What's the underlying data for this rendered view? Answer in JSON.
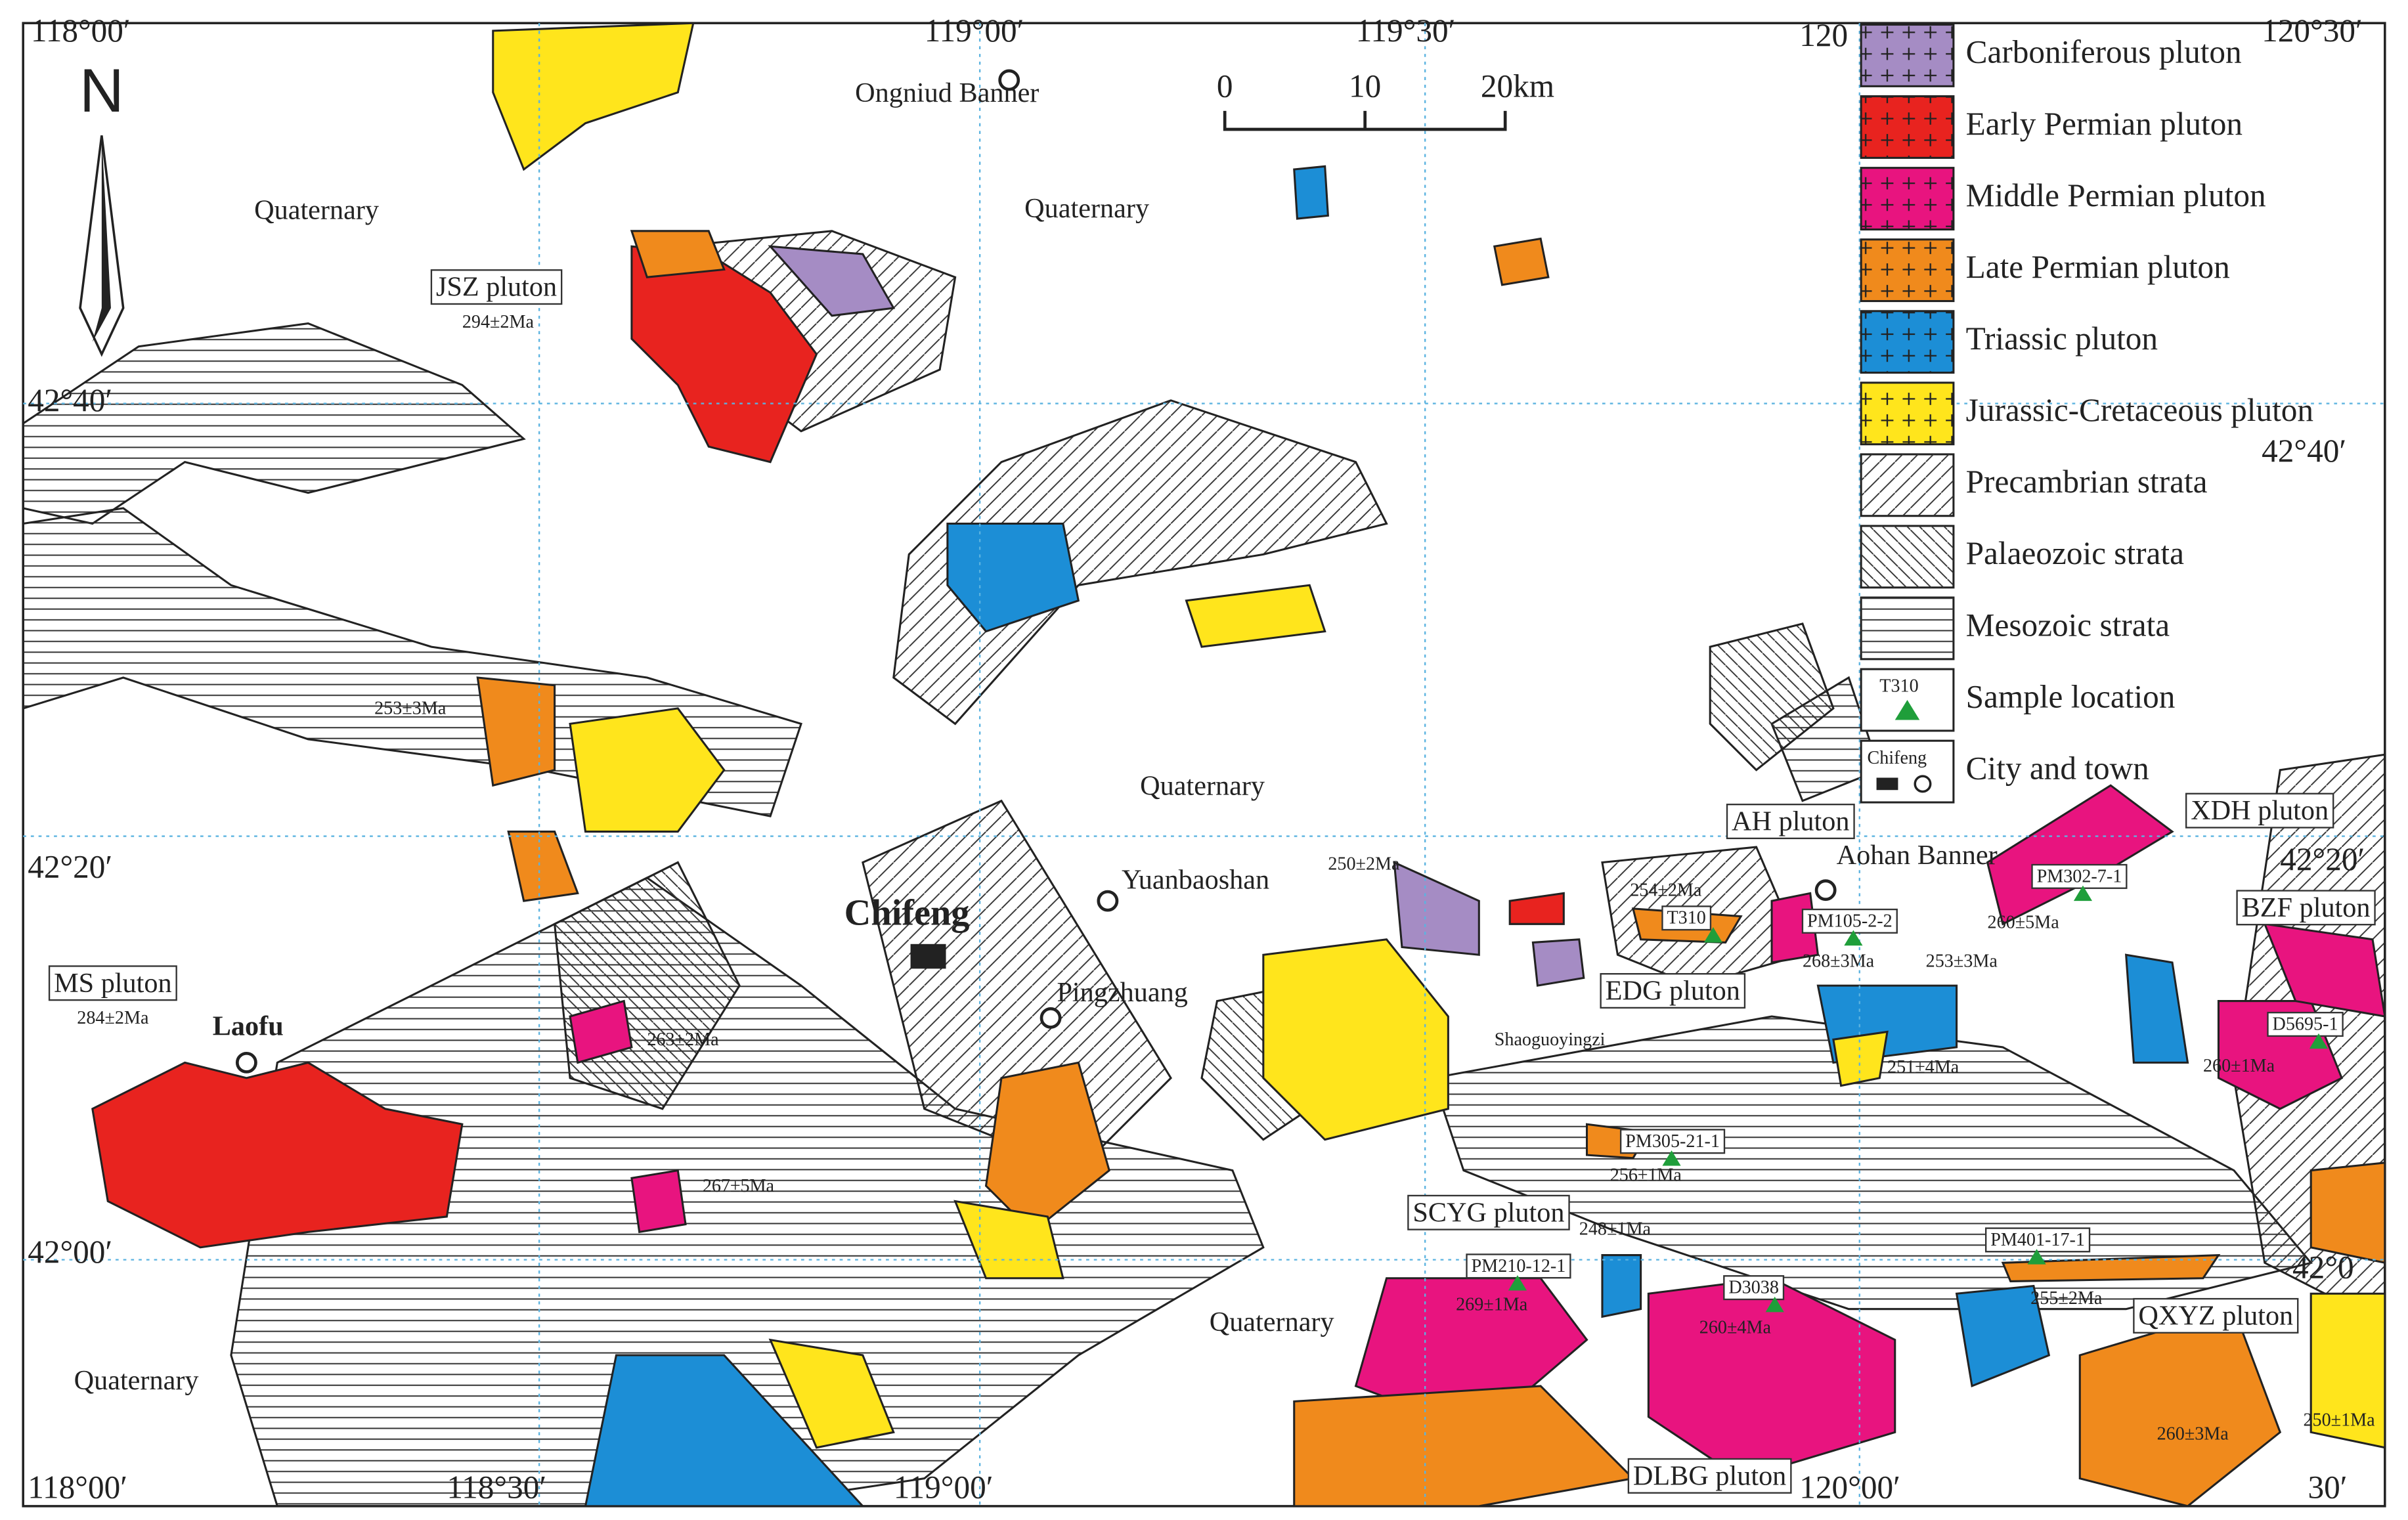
{
  "coordinates": {
    "top": [
      "118°00′",
      "119°00′",
      "119°30′",
      "120",
      "120°30′"
    ],
    "left": [
      "42°40′",
      "42°20′",
      "42°00′"
    ],
    "right": [
      "42°40′",
      "42°20′",
      "42°0"
    ],
    "bottom": [
      "118°00′",
      "118°30′",
      "119°00′",
      "120°00′",
      "30′"
    ]
  },
  "north": "N",
  "scale": [
    "0",
    "10",
    "20km"
  ],
  "places": [
    "Ongniud Banner",
    "Quaternary",
    "Quaternary",
    "Quaternary",
    "Quaternary",
    "Quaternary",
    "Chifeng",
    "Yuanbaoshan",
    "Pingzhuang",
    "Aohan Banner",
    "Laofu",
    "Shaoguoyingzi"
  ],
  "plutons": [
    "JSZ pluton",
    "MS pluton",
    "AH pluton",
    "EDG pluton",
    "SCYG pluton",
    "DLBG pluton",
    "XDH pluton",
    "BZF pluton",
    "QXYZ pluton"
  ],
  "ages": [
    "294±2Ma",
    "284±2Ma",
    "253±3Ma",
    "263±2Ma",
    "267±5Ma",
    "250±2Ma",
    "254±2Ma",
    "268±3Ma",
    "253±3Ma",
    "251±4Ma",
    "256±1Ma",
    "248±1Ma",
    "269±1Ma",
    "260±4Ma",
    "260±5Ma",
    "260±1Ma",
    "255±2Ma",
    "260±3Ma",
    "250±1Ma"
  ],
  "samples": [
    "T310",
    "PM105-2-2",
    "PM302-7-1",
    "D5695-1",
    "PM305-21-1",
    "PM210-12-1",
    "D3038",
    "PM401-17-1"
  ],
  "legend": {
    "items": [
      "Carboniferous pluton",
      "Early Permian pluton",
      "Middle Permian pluton",
      "Late Permian pluton",
      "Triassic pluton",
      "Jurassic-Cretaceous pluton",
      "Precambrian strata",
      "Palaeozoic strata",
      "Mesozoic strata",
      "Sample location",
      "City and town"
    ],
    "sample_example": "T310",
    "city_example": "Chifeng"
  }
}
